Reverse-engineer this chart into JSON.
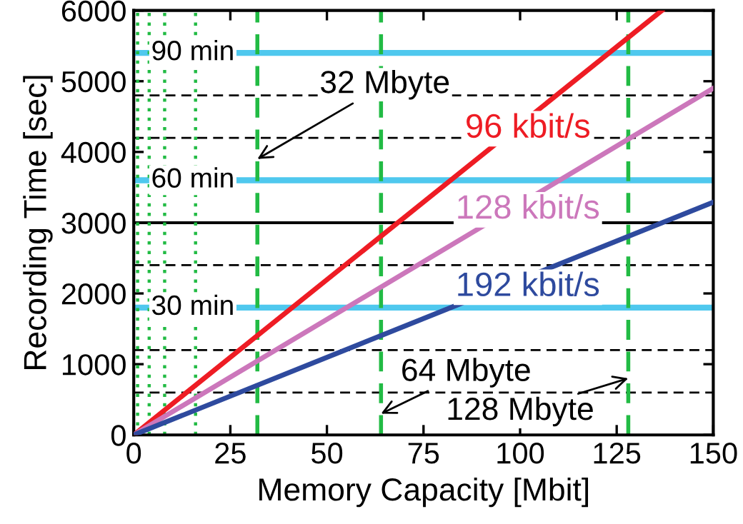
{
  "chart_data": {
    "type": "line",
    "xlabel": "Memory Capacity [Mbit]",
    "ylabel": "Recording Time [sec]",
    "xlim": [
      0,
      150
    ],
    "ylim": [
      0,
      6000
    ],
    "xticks": [
      0,
      25,
      50,
      75,
      100,
      125,
      150
    ],
    "yticks": [
      0,
      1000,
      2000,
      3000,
      4000,
      5000,
      6000
    ],
    "grid": false,
    "legend": false,
    "marker": "none",
    "line_style": "solid",
    "series": [
      {
        "name": "96 kbit/s",
        "color": "#ee1c24",
        "x": [
          0,
          136.7
        ],
        "values": [
          0,
          6000
        ]
      },
      {
        "name": "128 kbit/s",
        "color": "#cc77bb",
        "x": [
          0,
          150
        ],
        "values": [
          0,
          4900
        ]
      },
      {
        "name": "192 kbit/s",
        "color": "#2e4a9e",
        "x": [
          0,
          150
        ],
        "values": [
          0,
          3290
        ]
      }
    ],
    "ref_lines": [
      {
        "axis": "y",
        "value": 600,
        "color": "#000000",
        "line_style": "dashed"
      },
      {
        "axis": "y",
        "value": 1200,
        "color": "#000000",
        "line_style": "dashed"
      },
      {
        "axis": "y",
        "value": 2400,
        "color": "#000000",
        "line_style": "dashed"
      },
      {
        "axis": "y",
        "value": 3000,
        "color": "#000000",
        "line_style": "solid"
      },
      {
        "axis": "y",
        "value": 4200,
        "color": "#000000",
        "line_style": "dashed"
      },
      {
        "axis": "y",
        "value": 4800,
        "color": "#000000",
        "line_style": "dashed"
      },
      {
        "axis": "y",
        "value": 1800,
        "color": "#4fc8ee",
        "line_style": "solid",
        "label": "30 min"
      },
      {
        "axis": "y",
        "value": 3600,
        "color": "#4fc8ee",
        "line_style": "solid",
        "label": "60 min"
      },
      {
        "axis": "y",
        "value": 5400,
        "color": "#4fc8ee",
        "line_style": "solid",
        "label": "90 min"
      },
      {
        "axis": "x",
        "value": 1,
        "color": "#22bb44",
        "line_style": "dotted"
      },
      {
        "axis": "x",
        "value": 4,
        "color": "#22bb44",
        "line_style": "dotted"
      },
      {
        "axis": "x",
        "value": 8,
        "color": "#22bb44",
        "line_style": "dotted"
      },
      {
        "axis": "x",
        "value": 16,
        "color": "#22bb44",
        "line_style": "dotted"
      },
      {
        "axis": "x",
        "value": 32,
        "color": "#22bb44",
        "line_style": "dashed"
      },
      {
        "axis": "x",
        "value": 64,
        "color": "#22bb44",
        "line_style": "dashed"
      },
      {
        "axis": "x",
        "value": 128,
        "color": "#22bb44",
        "line_style": "dashed"
      }
    ],
    "annotations": [
      {
        "text": "32 Mbyte",
        "x": 32,
        "y": 3900
      },
      {
        "text": "64 Mbyte",
        "x": 64,
        "y": 300
      },
      {
        "text": "128 Mbyte",
        "x": 128,
        "y": 800
      }
    ]
  }
}
